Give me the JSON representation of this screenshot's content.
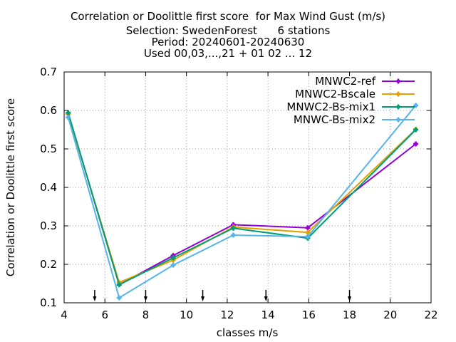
{
  "chart_data": {
    "type": "line",
    "title_lines": [
      "Correlation or Doolittle first score  for Max Wind Gust (m/s)",
      "Selection: SwedenForest      6 stations",
      "Period: 20240601-20240630",
      "Used 00,03,...,21 + 01 02 ... 12"
    ],
    "xlabel": "classes m/s",
    "ylabel": "Correlation or Doolittle first score",
    "xlim": [
      4,
      22
    ],
    "ylim": [
      0.1,
      0.7
    ],
    "xticks": [
      4,
      6,
      8,
      10,
      12,
      14,
      16,
      18,
      20,
      22
    ],
    "xtick_labels": [
      "4",
      "6",
      "8",
      "10",
      "12",
      "14",
      "16",
      "18",
      "20",
      "22"
    ],
    "yticks": [
      0.1,
      0.2,
      0.3,
      0.4,
      0.5,
      0.6,
      0.7
    ],
    "ytick_labels": [
      "0.1",
      "0.2",
      "0.3",
      "0.4",
      "0.5",
      "0.6",
      "0.7"
    ],
    "grid": true,
    "legend_position": "top-right",
    "arrow_markers_x": [
      5.5,
      8.0,
      10.8,
      13.9,
      18.0
    ],
    "x": [
      4.2,
      6.7,
      9.35,
      12.3,
      15.95,
      21.25
    ],
    "series": [
      {
        "name": "MNWC2-ref",
        "color": "#9400d3",
        "values": [
          0.592,
          0.147,
          0.223,
          0.303,
          0.295,
          0.513
        ]
      },
      {
        "name": "MNWC2-Bscale",
        "color": "#e69f00",
        "values": [
          0.59,
          0.153,
          0.211,
          0.297,
          0.283,
          0.551
        ]
      },
      {
        "name": "MNWC2-Bs-mix1",
        "color": "#009e73",
        "values": [
          0.594,
          0.147,
          0.217,
          0.294,
          0.268,
          0.55
        ]
      },
      {
        "name": "MNWC-Bs-mix2",
        "color": "#56b4e9",
        "values": [
          0.582,
          0.113,
          0.198,
          0.276,
          0.272,
          0.613
        ]
      }
    ]
  }
}
